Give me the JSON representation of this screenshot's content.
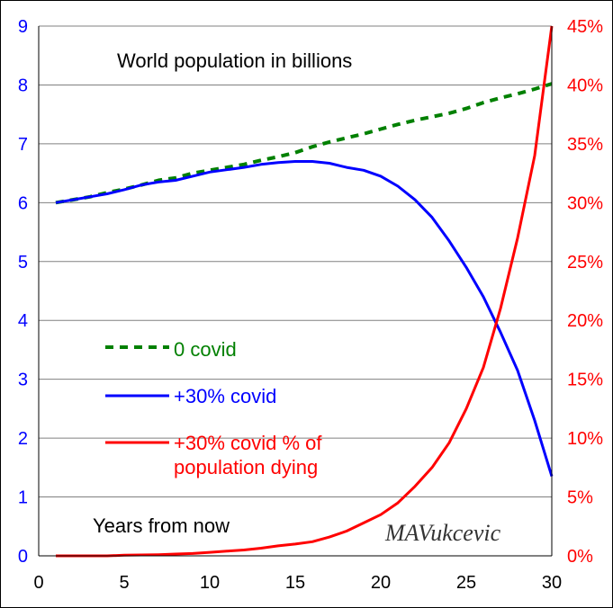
{
  "chart_data": {
    "type": "line",
    "title": "World population in billions",
    "xlabel": "Years from now",
    "watermark": "MAVukcevic",
    "xlim": [
      0,
      30
    ],
    "ylim_left": [
      0,
      9
    ],
    "ylim_right": [
      0,
      45
    ],
    "x_ticks": [
      "0",
      "5",
      "10",
      "15",
      "20",
      "25",
      "30"
    ],
    "y_ticks_left": [
      "0",
      "1",
      "2",
      "3",
      "4",
      "5",
      "6",
      "7",
      "8",
      "9"
    ],
    "y_ticks_right": [
      "0%",
      "5%",
      "10%",
      "15%",
      "20%",
      "25%",
      "30%",
      "35%",
      "40%",
      "45%"
    ],
    "grid": "horizontal",
    "legend_lines": [
      "0 covid",
      "+30% covid",
      "+30% covid % of",
      "population dying"
    ],
    "series": [
      {
        "name": "0 covid",
        "axis": "left",
        "color": "#008000",
        "style": "dashed",
        "x": [
          1,
          2,
          3,
          4,
          5,
          6,
          7,
          8,
          9,
          10,
          11,
          12,
          13,
          14,
          15,
          16,
          17,
          18,
          19,
          20,
          21,
          22,
          23,
          24,
          25,
          26,
          27,
          28,
          29,
          30
        ],
        "values": [
          6.0,
          6.05,
          6.1,
          6.17,
          6.23,
          6.3,
          6.38,
          6.42,
          6.5,
          6.55,
          6.6,
          6.65,
          6.72,
          6.78,
          6.85,
          6.95,
          7.03,
          7.1,
          7.17,
          7.25,
          7.33,
          7.4,
          7.46,
          7.52,
          7.6,
          7.7,
          7.78,
          7.85,
          7.93,
          8.02
        ]
      },
      {
        "name": "+30% covid",
        "axis": "left",
        "color": "#0000ff",
        "style": "solid",
        "x": [
          1,
          2,
          3,
          4,
          5,
          6,
          7,
          8,
          9,
          10,
          11,
          12,
          13,
          14,
          15,
          16,
          17,
          18,
          19,
          20,
          21,
          22,
          23,
          24,
          25,
          26,
          27,
          28,
          29,
          30
        ],
        "values": [
          6.0,
          6.05,
          6.1,
          6.15,
          6.22,
          6.3,
          6.35,
          6.38,
          6.45,
          6.52,
          6.56,
          6.6,
          6.65,
          6.68,
          6.7,
          6.7,
          6.67,
          6.6,
          6.55,
          6.45,
          6.28,
          6.05,
          5.75,
          5.35,
          4.9,
          4.4,
          3.8,
          3.15,
          2.3,
          1.35
        ]
      },
      {
        "name": "+30% covid % of population dying",
        "axis": "right",
        "color": "#ff0000",
        "style": "solid",
        "x": [
          1,
          2,
          3,
          4,
          5,
          6,
          7,
          8,
          9,
          10,
          11,
          12,
          13,
          14,
          15,
          16,
          17,
          18,
          19,
          20,
          21,
          22,
          23,
          24,
          25,
          26,
          27,
          28,
          29,
          30
        ],
        "values": [
          0,
          0,
          0,
          0,
          0.05,
          0.08,
          0.1,
          0.15,
          0.2,
          0.3,
          0.4,
          0.5,
          0.65,
          0.85,
          1.0,
          1.2,
          1.6,
          2.1,
          2.8,
          3.5,
          4.5,
          5.9,
          7.5,
          9.6,
          12.5,
          16,
          21,
          27,
          34,
          45
        ]
      }
    ]
  }
}
